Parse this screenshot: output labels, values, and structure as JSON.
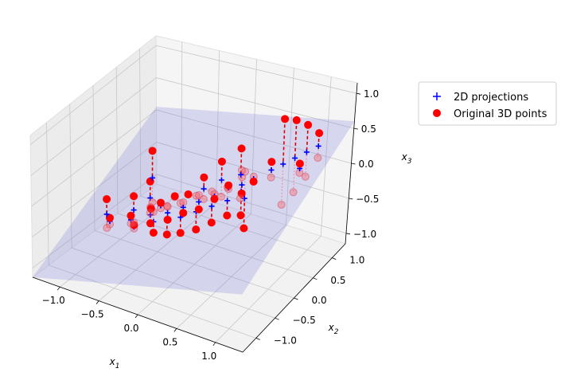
{
  "chart_data": {
    "type": "scatter",
    "projection": "3d",
    "axes": {
      "x": {
        "label": "x",
        "sub": "1",
        "ticks": [
          -1.0,
          -0.5,
          0.0,
          0.5,
          1.0
        ],
        "tick_labels": [
          "−1.0",
          "−0.5",
          "0.0",
          "0.5",
          "1.0"
        ],
        "range": [
          -1.35,
          1.35
        ]
      },
      "y": {
        "label": "x",
        "sub": "2",
        "ticks": [
          -1.0,
          -0.5,
          0.0,
          0.5,
          1.0
        ],
        "tick_labels": [
          "−1.0",
          "−0.5",
          "0.0",
          "0.5",
          "1.0"
        ],
        "range": [
          -1.35,
          1.35
        ]
      },
      "z": {
        "label": "x",
        "sub": "3",
        "ticks": [
          -1.0,
          -0.5,
          0.0,
          0.5,
          1.0
        ],
        "tick_labels": [
          "−1.0",
          "−0.5",
          "0.0",
          "0.5",
          "1.0"
        ],
        "range": [
          -1.15,
          1.15
        ]
      }
    },
    "grid": true,
    "legend": {
      "position": "right",
      "entries": [
        {
          "label": "2D projections",
          "marker": "plus",
          "color": "#0000ff"
        },
        {
          "label": "Original 3D points",
          "marker": "circle",
          "color": "#ff0000"
        }
      ]
    },
    "plane": {
      "z_corners": [
        [
          -1.15,
          0.05
        ],
        [
          -0.3,
          0.6
        ]
      ],
      "color": "#6b6bd6",
      "opacity": 0.22
    },
    "series": [
      {
        "name": "Original 3D points",
        "points": [
          [
            -1.0,
            -0.3,
            -0.35
          ],
          [
            -0.9,
            -0.4,
            -0.55
          ],
          [
            -0.7,
            -0.2,
            -0.25
          ],
          [
            -0.65,
            -0.35,
            -0.45
          ],
          [
            -0.55,
            -0.45,
            -0.5
          ],
          [
            -0.6,
            0.0,
            -0.1
          ],
          [
            -0.5,
            -0.15,
            -0.4
          ],
          [
            -0.45,
            -0.25,
            -0.55
          ],
          [
            -0.4,
            -0.1,
            -0.3
          ],
          [
            -0.35,
            -0.35,
            -0.6
          ],
          [
            -0.3,
            0.05,
            -0.25
          ],
          [
            -0.25,
            -0.2,
            -0.45
          ],
          [
            -0.2,
            -0.3,
            -0.6
          ],
          [
            -0.15,
            0.1,
            -0.2
          ],
          [
            -0.1,
            -0.1,
            -0.35
          ],
          [
            -0.05,
            -0.25,
            -0.55
          ],
          [
            0.0,
            0.2,
            0.05
          ],
          [
            0.05,
            0.0,
            -0.3
          ],
          [
            0.1,
            -0.15,
            -0.5
          ],
          [
            0.15,
            0.35,
            0.25
          ],
          [
            0.2,
            0.1,
            -0.15
          ],
          [
            0.25,
            -0.05,
            -0.4
          ],
          [
            0.3,
            0.25,
            0.0
          ],
          [
            0.35,
            0.45,
            0.45
          ],
          [
            0.4,
            0.05,
            -0.3
          ],
          [
            0.45,
            0.3,
            -0.1
          ],
          [
            0.5,
            0.2,
            -0.35
          ],
          [
            0.55,
            0.4,
            0.05
          ],
          [
            0.6,
            0.1,
            -0.45
          ],
          [
            0.7,
            0.55,
            0.3
          ],
          [
            0.8,
            0.65,
            0.9
          ],
          [
            0.9,
            0.75,
            0.85
          ],
          [
            1.0,
            0.85,
            0.75
          ],
          [
            1.05,
            0.6,
            0.35
          ],
          [
            1.1,
            0.95,
            0.6
          ],
          [
            -0.75,
            0.3,
            0.15
          ]
        ]
      }
    ]
  }
}
